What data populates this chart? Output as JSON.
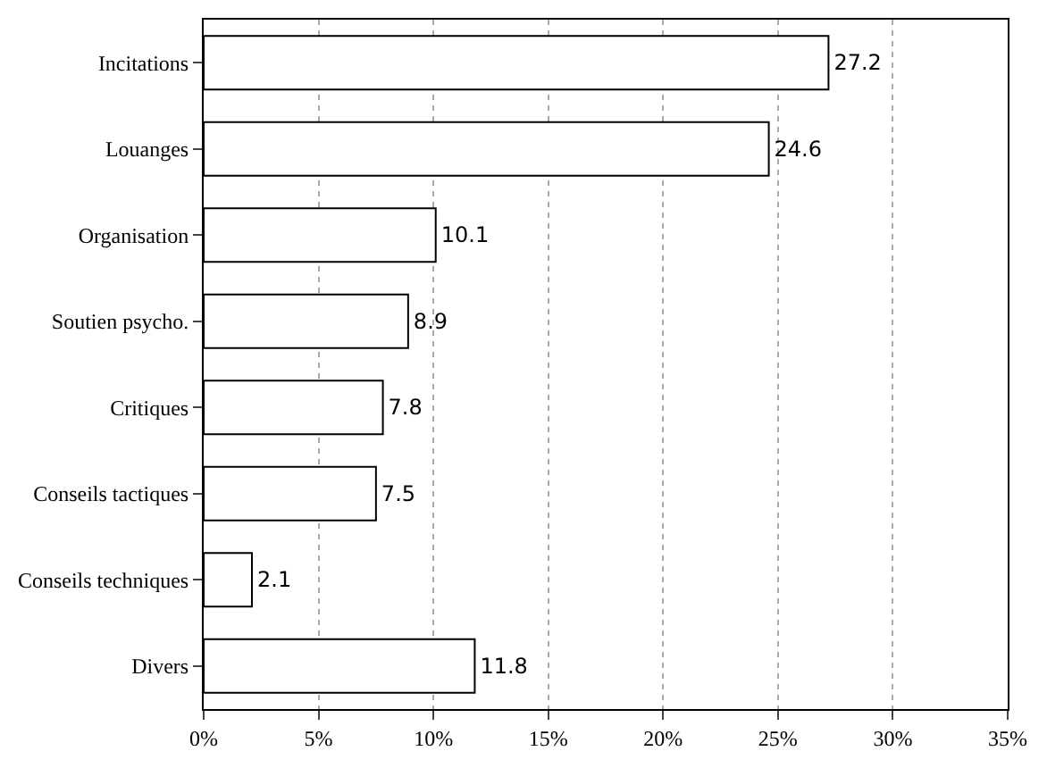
{
  "chart_data": {
    "type": "bar",
    "orientation": "horizontal",
    "categories": [
      "Incitations",
      "Louanges",
      "Organisation",
      "Soutien psycho.",
      "Critiques",
      "Conseils tactiques",
      "Conseils techniques",
      "Divers"
    ],
    "values": [
      27.2,
      24.6,
      10.1,
      8.9,
      7.8,
      7.5,
      2.1,
      11.8
    ],
    "color": "#ffffff",
    "xlim": [
      0,
      35
    ],
    "xticks": [
      {
        "value": 0,
        "label": "0%"
      },
      {
        "value": 5,
        "label": "5%"
      },
      {
        "value": 10,
        "label": "10%"
      },
      {
        "value": 15,
        "label": "15%"
      },
      {
        "value": 20,
        "label": "20%"
      },
      {
        "value": 25,
        "label": "25%"
      },
      {
        "value": 30,
        "label": "30%"
      },
      {
        "value": 35,
        "label": "35%"
      }
    ],
    "grid": "x",
    "data_labels": true,
    "legend": false
  }
}
